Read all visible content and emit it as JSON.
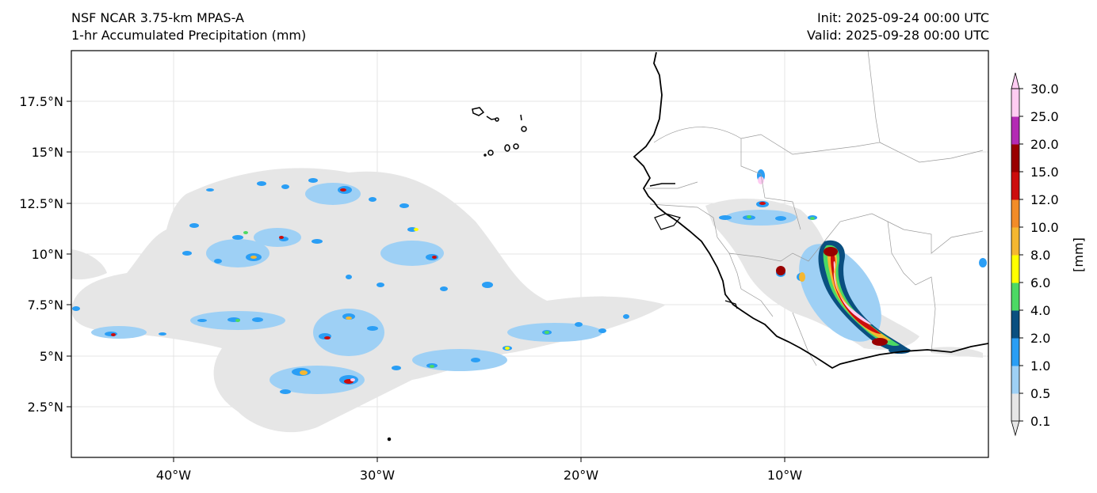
{
  "header": {
    "model_name": "NSF NCAR 3.75-km MPAS-A",
    "field_name": "1-hr Accumulated Precipitation (mm)",
    "init_time": "Init: 2025-09-24 00:00 UTC",
    "valid_time": "Valid: 2025-09-28 00:00 UTC"
  },
  "axes": {
    "lon_ticks": [
      "40°W",
      "30°W",
      "20°W",
      "10°W"
    ],
    "lat_ticks": [
      "17.5°N",
      "15°N",
      "12.5°N",
      "10°N",
      "7.5°N",
      "5°N",
      "2.5°N"
    ]
  },
  "colorbar": {
    "unit_label": "[mm]",
    "levels": [
      "0.1",
      "0.5",
      "1.0",
      "2.0",
      "4.0",
      "6.0",
      "8.0",
      "10.0",
      "12.0",
      "15.0",
      "20.0",
      "25.0",
      "30.0"
    ],
    "colors": [
      "#e6e6e6",
      "#9ed0f5",
      "#2a9ef5",
      "#0a4f80",
      "#4cd964",
      "#ffff00",
      "#f5b731",
      "#f28c28",
      "#cc0d0d",
      "#990000",
      "#b32bb3",
      "#ffccf2"
    ]
  }
}
